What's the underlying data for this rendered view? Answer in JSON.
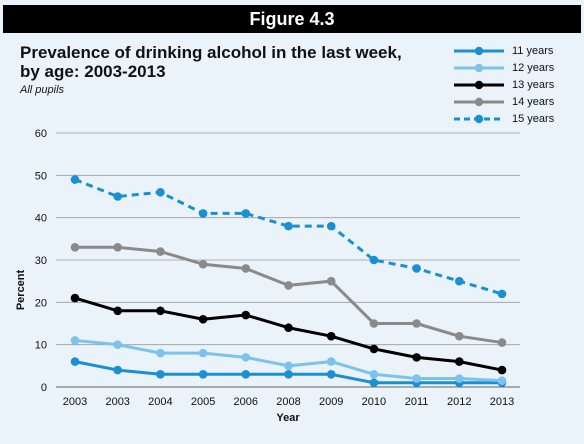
{
  "header": {
    "figure_label": "Figure 4.3"
  },
  "chart_data": {
    "type": "line",
    "title": "Prevalence of  drinking alcohol in the last week, by age: 2003-2013",
    "title_line1": "Prevalence of  drinking alcohol in the last week,",
    "title_line2": "by age: 2003-2013",
    "subtitle": "All pupils",
    "xlabel": "Year",
    "ylabel": "Percent",
    "categories": [
      "2003",
      "2003",
      "2004",
      "2005",
      "2006",
      "2008",
      "2009",
      "2010",
      "2011",
      "2012",
      "2013"
    ],
    "ylim": [
      0,
      60
    ],
    "yticks": [
      "0",
      "10",
      "20",
      "30",
      "40",
      "50",
      "60"
    ],
    "grid": true,
    "legend_position": "top-right",
    "series": [
      {
        "name": "11 years",
        "color": "#1a8fd1",
        "dashed": false,
        "values": [
          6,
          4,
          3,
          3,
          3,
          3,
          3,
          1,
          1,
          1,
          1
        ]
      },
      {
        "name": "12 years",
        "color": "#7cc3ec",
        "dashed": false,
        "values": [
          11,
          10,
          8,
          8,
          7,
          5,
          6,
          3,
          2,
          2,
          1.5
        ]
      },
      {
        "name": "13  years",
        "color": "#000000",
        "dashed": false,
        "values": [
          21,
          18,
          18,
          16,
          17,
          14,
          12,
          9,
          7,
          6,
          4
        ]
      },
      {
        "name": "14  years",
        "color": "#8a8a8a",
        "dashed": false,
        "values": [
          33,
          33,
          32,
          29,
          28,
          24,
          25,
          15,
          15,
          12,
          10.5
        ]
      },
      {
        "name": "15 years",
        "color": "#1a8fd1",
        "dashed": true,
        "values": [
          49,
          45,
          46,
          41,
          41,
          38,
          38,
          30,
          28,
          25,
          22
        ]
      }
    ]
  }
}
